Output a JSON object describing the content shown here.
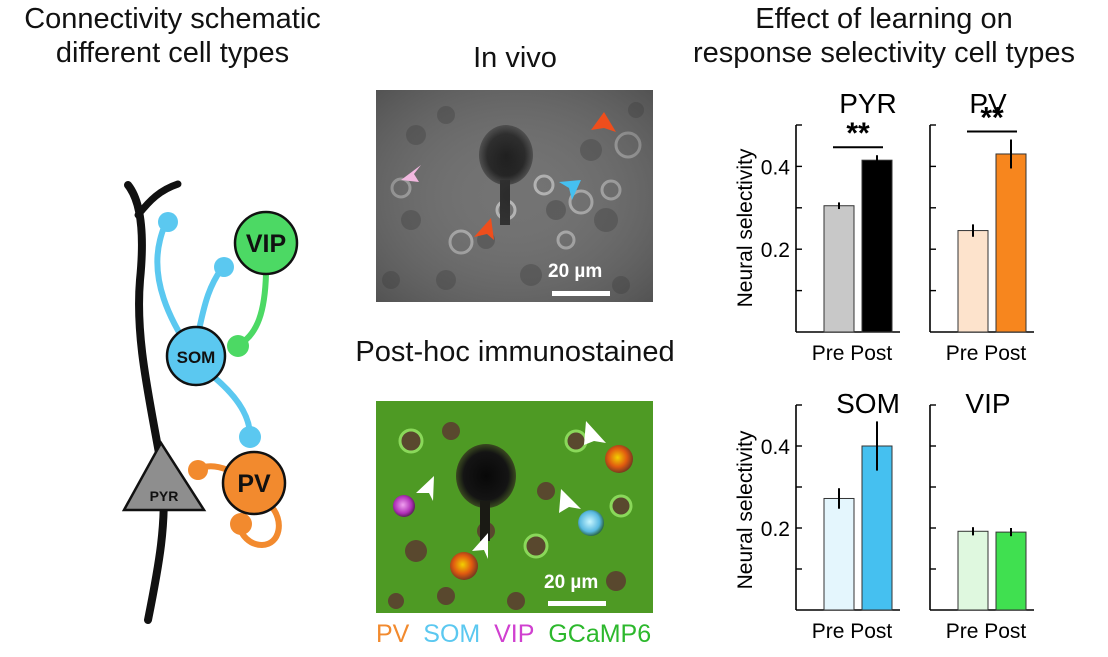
{
  "panels": {
    "schematic_title": [
      "Connectivity schematic",
      "different cell types"
    ],
    "invivo_title": "In vivo",
    "posthoc_title": "Post-hoc immunostained",
    "learning_title": [
      "Effect of learning on",
      "response selectivity cell types"
    ]
  },
  "schematic": {
    "cells": {
      "vip": "VIP",
      "som": "SOM",
      "pv": "PV",
      "pyr": "PYR"
    },
    "colors": {
      "som": "#5bc8f0",
      "vip": "#4cd964",
      "pv": "#f28a2e",
      "pyr": "#8e8e8e",
      "dendrite": "#111111"
    }
  },
  "images": {
    "invivo_scale": "20 µm",
    "posthoc_scale": "20 µm"
  },
  "legend": [
    {
      "label": "PV",
      "color": "#f28a2e"
    },
    {
      "label": "SOM",
      "color": "#5bc8f0"
    },
    {
      "label": "VIP",
      "color": "#d040d0"
    },
    {
      "label": "GCaMP6",
      "color": "#2db82d"
    }
  ],
  "chart_data": [
    {
      "type": "bar",
      "title": "PYR",
      "ylabel": "Neural selectivity",
      "categories": [
        "Pre",
        "Post"
      ],
      "values": [
        0.305,
        0.415
      ],
      "errors": [
        0.008,
        0.012
      ],
      "colors": [
        "#c8c8c8",
        "#000000"
      ],
      "ylim": [
        0,
        0.5
      ],
      "yticks": [
        "0.2",
        "0.4"
      ],
      "significance": "**"
    },
    {
      "type": "bar",
      "title": "PV",
      "ylabel": "",
      "categories": [
        "Pre",
        "Post"
      ],
      "values": [
        0.245,
        0.43
      ],
      "errors": [
        0.015,
        0.035
      ],
      "colors": [
        "#fde3cc",
        "#f7861e"
      ],
      "ylim": [
        0,
        0.5
      ],
      "yticks": [
        "",
        ""
      ],
      "significance": "**"
    },
    {
      "type": "bar",
      "title": "SOM",
      "ylabel": "Neural selectivity",
      "categories": [
        "Pre",
        "Post"
      ],
      "values": [
        0.272,
        0.4
      ],
      "errors": [
        0.025,
        0.06
      ],
      "colors": [
        "#e4f6fd",
        "#45c0f0"
      ],
      "ylim": [
        0,
        0.5
      ],
      "yticks": [
        "0.2",
        "0.4"
      ],
      "significance": ""
    },
    {
      "type": "bar",
      "title": "VIP",
      "ylabel": "",
      "categories": [
        "Pre",
        "Post"
      ],
      "values": [
        0.192,
        0.19
      ],
      "errors": [
        0.01,
        0.01
      ],
      "colors": [
        "#dff8df",
        "#40e050"
      ],
      "ylim": [
        0,
        0.5
      ],
      "yticks": [
        "",
        ""
      ],
      "significance": ""
    }
  ]
}
